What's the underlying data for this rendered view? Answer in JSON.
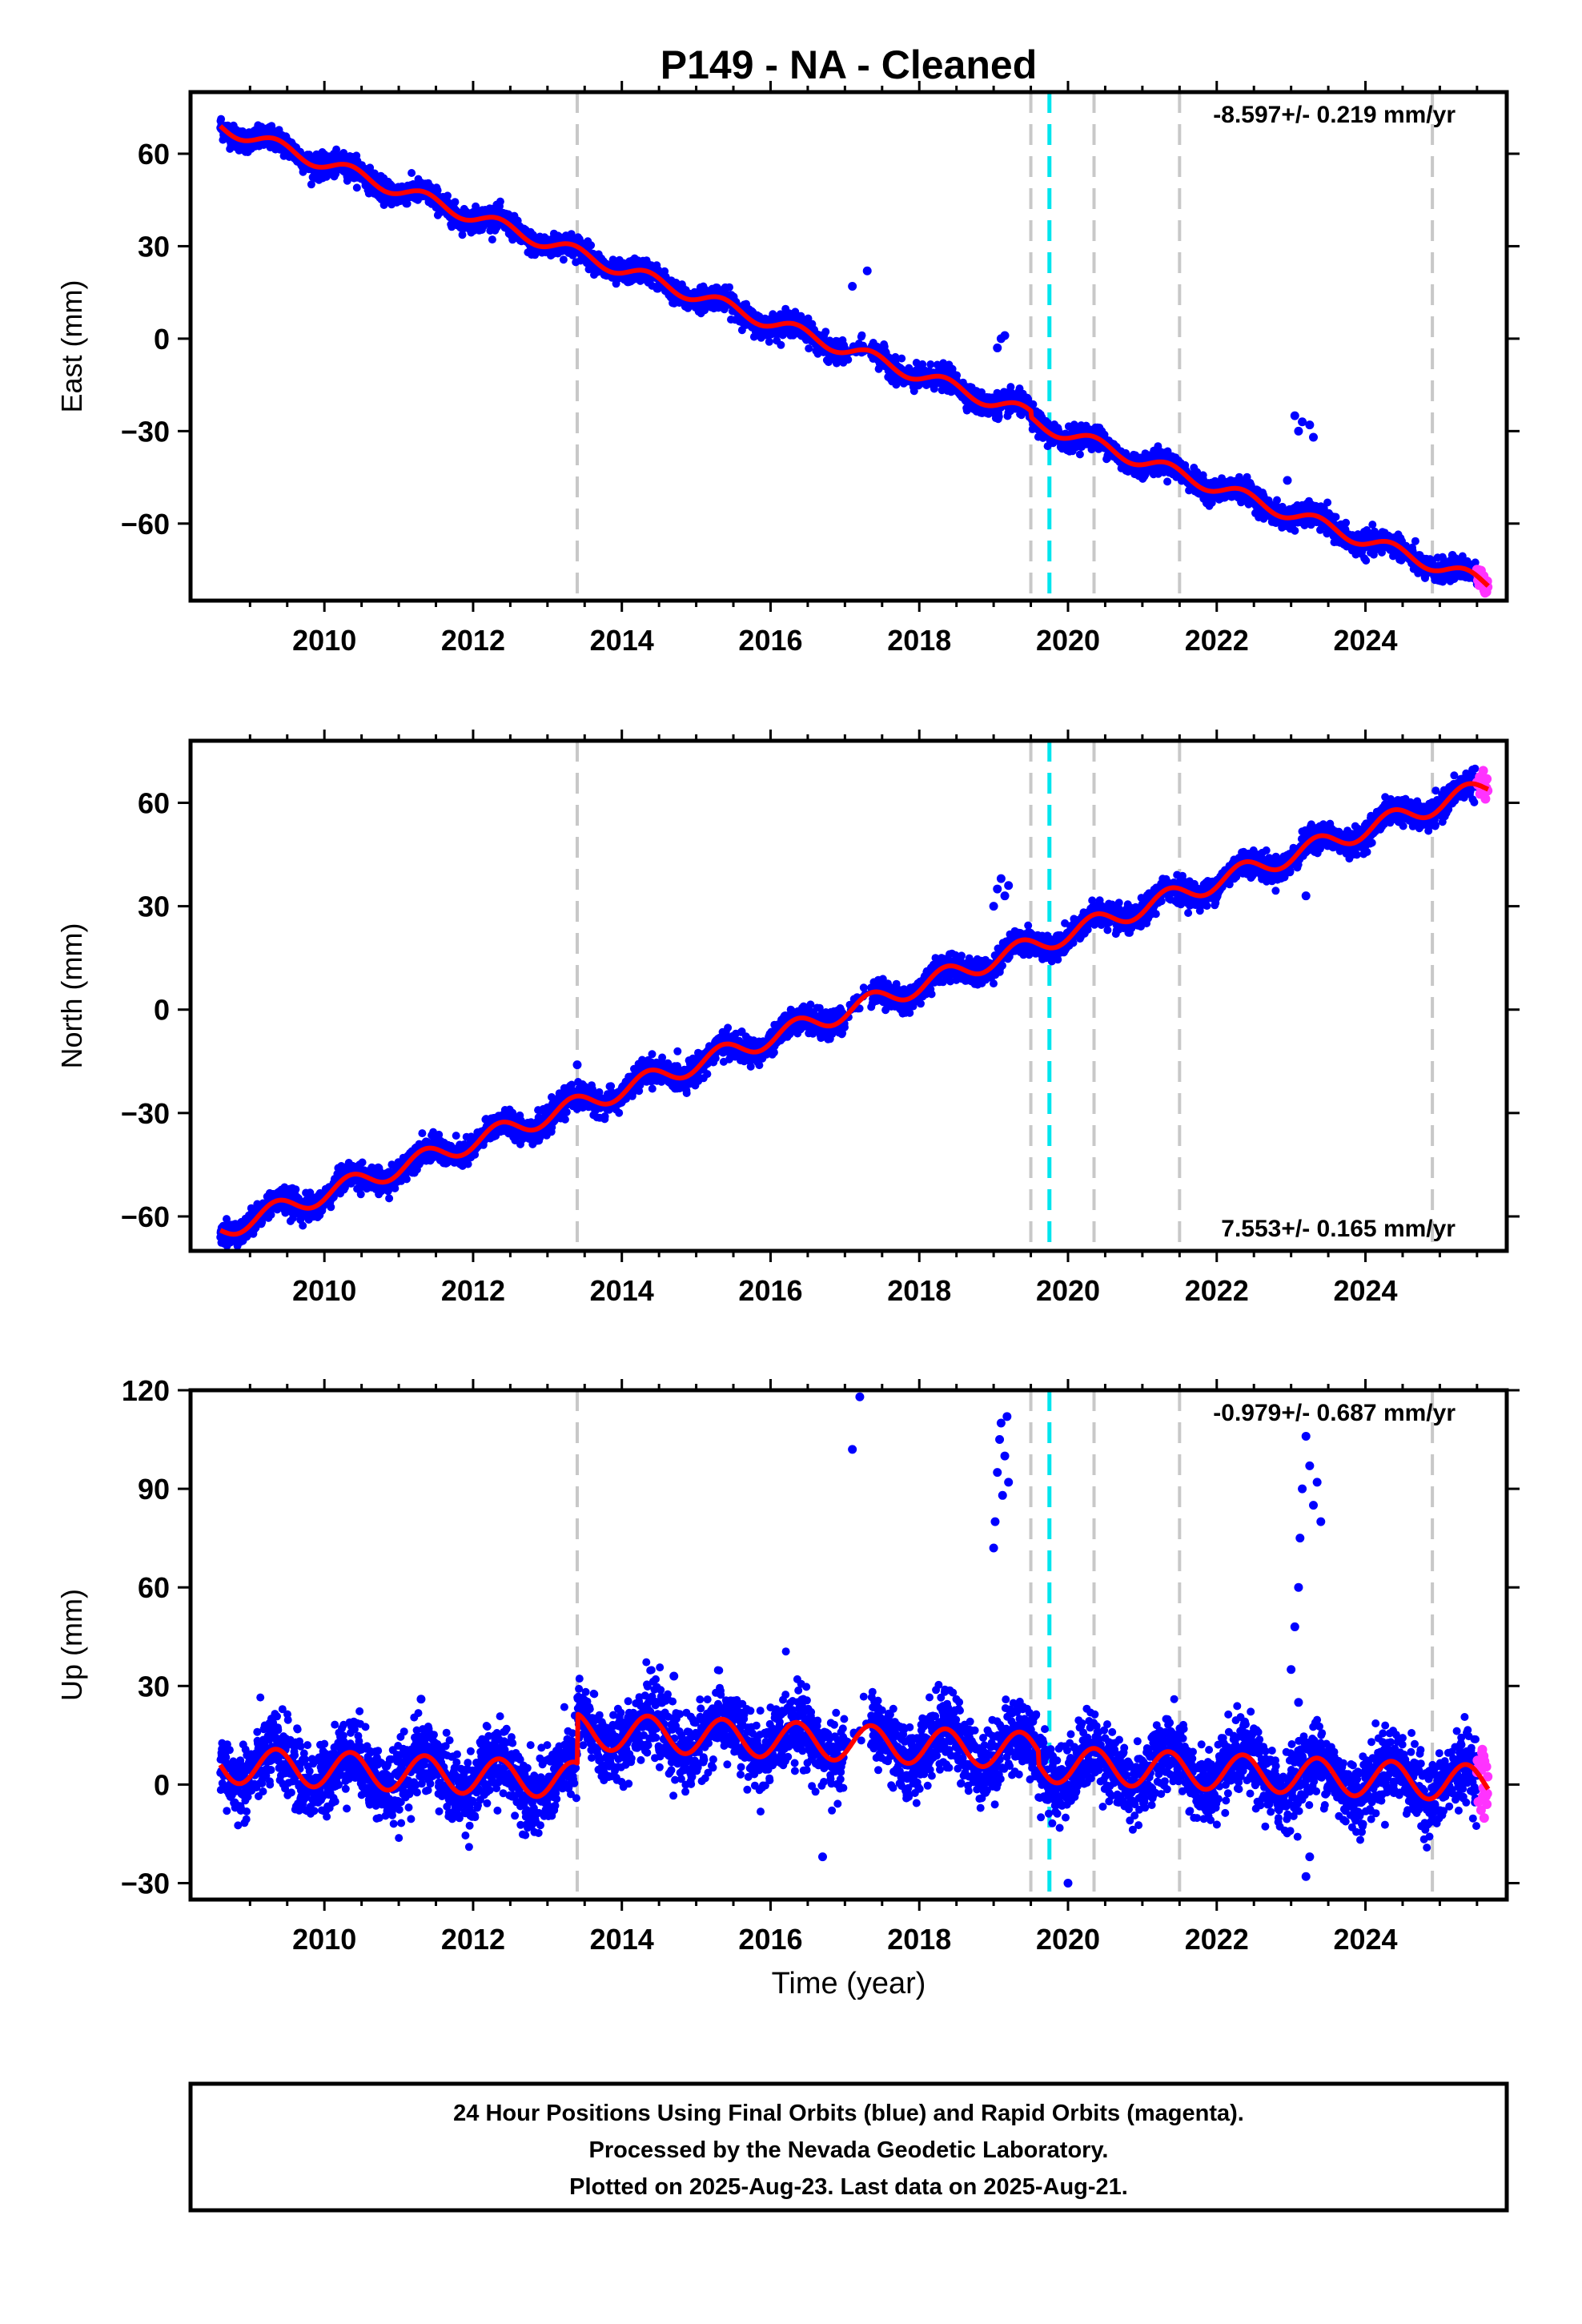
{
  "title": "P149  - NA - Cleaned",
  "x_axis_label": "Time (year)",
  "footer": {
    "lines": [
      "24 Hour Positions Using Final Orbits (blue) and Rapid Orbits (magenta).",
      "Processed by the Nevada Geodetic Laboratory.",
      "Plotted on 2025-Aug-23. Last data on 2025-Aug-21."
    ]
  },
  "colors": {
    "final_orbits": "#0000ff",
    "rapid_orbits": "#ff33ff",
    "model": "#ff0000",
    "equipment_change": "#c8c8c8",
    "earthquake": "#00e5ee"
  },
  "chart_data": [
    {
      "type": "scatter",
      "component": "East",
      "ylabel": "East (mm)",
      "rate_text": "-8.597+/- 0.219 mm/yr",
      "rate_position": "top-right",
      "xlim": [
        2008.2,
        2025.9
      ],
      "ylim": [
        -85,
        80
      ],
      "x_ticks": [
        2010,
        2012,
        2014,
        2016,
        2018,
        2020,
        2022,
        2024
      ],
      "y_ticks": [
        60,
        30,
        0,
        -30,
        -60
      ],
      "velocity_mm_per_yr": -8.597,
      "model": {
        "t0": 2008.6,
        "y0": 69,
        "rate": -8.597,
        "annual_amplitude": 2.2,
        "offsets": [
          {
            "x": 2019.5,
            "dy": -2
          }
        ]
      },
      "outliers": [
        {
          "x": 2017.1,
          "y": 17
        },
        {
          "x": 2017.3,
          "y": 22
        },
        {
          "x": 2019.05,
          "y": -3
        },
        {
          "x": 2019.1,
          "y": 0
        },
        {
          "x": 2019.15,
          "y": 1
        },
        {
          "x": 2023.05,
          "y": -25
        },
        {
          "x": 2023.1,
          "y": -30
        },
        {
          "x": 2023.15,
          "y": -27
        },
        {
          "x": 2023.25,
          "y": -28
        },
        {
          "x": 2023.3,
          "y": -32
        },
        {
          "x": 2022.95,
          "y": -46
        }
      ],
      "rapid_end": [
        2025.5,
        2025.65
      ]
    },
    {
      "type": "scatter",
      "component": "North",
      "ylabel": "North (mm)",
      "rate_text": "7.553+/- 0.165 mm/yr",
      "rate_position": "bottom-right",
      "xlim": [
        2008.2,
        2025.9
      ],
      "ylim": [
        -70,
        78
      ],
      "x_ticks": [
        2010,
        2012,
        2014,
        2016,
        2018,
        2020,
        2022,
        2024
      ],
      "y_ticks": [
        60,
        30,
        0,
        -30,
        -60
      ],
      "velocity_mm_per_yr": 7.553,
      "model": {
        "t0": 2008.6,
        "y0": -64,
        "rate": 7.553,
        "annual_amplitude": 2.8,
        "offsets": []
      },
      "outliers": [
        {
          "x": 2019.0,
          "y": 30
        },
        {
          "x": 2019.05,
          "y": 35
        },
        {
          "x": 2019.1,
          "y": 38
        },
        {
          "x": 2019.15,
          "y": 33
        },
        {
          "x": 2019.2,
          "y": 36
        },
        {
          "x": 2013.4,
          "y": -16
        },
        {
          "x": 2023.2,
          "y": 33
        },
        {
          "x": 2008.9,
          "y": -67
        }
      ],
      "rapid_end": [
        2025.5,
        2025.65
      ]
    },
    {
      "type": "scatter",
      "component": "Up",
      "ylabel": "Up (mm)",
      "rate_text": "-0.979+/- 0.687 mm/yr",
      "rate_position": "top-right",
      "xlim": [
        2008.2,
        2025.9
      ],
      "ylim": [
        -35,
        120
      ],
      "x_ticks": [
        2010,
        2012,
        2014,
        2016,
        2018,
        2020,
        2022,
        2024
      ],
      "y_ticks": [
        120,
        90,
        60,
        30,
        0,
        -30
      ],
      "velocity_mm_per_yr": -0.979,
      "model": {
        "t0": 2008.6,
        "y0": 6,
        "rate": -0.979,
        "annual_amplitude": 5.5,
        "offsets": [
          {
            "x": 2013.4,
            "dy": 15
          },
          {
            "x": 2019.6,
            "dy": -4
          }
        ]
      },
      "outliers": [
        {
          "x": 2017.1,
          "y": 102
        },
        {
          "x": 2017.2,
          "y": 118
        },
        {
          "x": 2019.0,
          "y": 72
        },
        {
          "x": 2019.02,
          "y": 80
        },
        {
          "x": 2019.05,
          "y": 95
        },
        {
          "x": 2019.08,
          "y": 105
        },
        {
          "x": 2019.1,
          "y": 110
        },
        {
          "x": 2019.12,
          "y": 88
        },
        {
          "x": 2019.15,
          "y": 100
        },
        {
          "x": 2019.18,
          "y": 112
        },
        {
          "x": 2019.2,
          "y": 92
        },
        {
          "x": 2023.0,
          "y": 35
        },
        {
          "x": 2023.05,
          "y": 48
        },
        {
          "x": 2023.1,
          "y": 60
        },
        {
          "x": 2023.12,
          "y": 75
        },
        {
          "x": 2023.15,
          "y": 90
        },
        {
          "x": 2023.2,
          "y": 106
        },
        {
          "x": 2023.25,
          "y": 97
        },
        {
          "x": 2023.3,
          "y": 85
        },
        {
          "x": 2023.35,
          "y": 92
        },
        {
          "x": 2023.4,
          "y": 80
        },
        {
          "x": 2023.1,
          "y": 25
        },
        {
          "x": 2023.2,
          "y": -28
        },
        {
          "x": 2023.25,
          "y": -22
        },
        {
          "x": 2016.7,
          "y": -22
        },
        {
          "x": 2011.3,
          "y": 26
        },
        {
          "x": 2014.7,
          "y": 33
        },
        {
          "x": 2020.0,
          "y": -30
        }
      ],
      "rapid_end": [
        2025.5,
        2025.65
      ]
    }
  ],
  "event_lines": {
    "equipment_change_years": [
      2013.4,
      2019.5,
      2020.35,
      2021.5,
      2024.9
    ],
    "earthquake_years": [
      2019.75
    ]
  }
}
